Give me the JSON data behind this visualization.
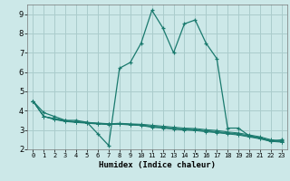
{
  "title": "",
  "xlabel": "Humidex (Indice chaleur)",
  "ylabel": "",
  "bg_color": "#cce8e8",
  "grid_color": "#aacccc",
  "line_color": "#1a7a6e",
  "xlim": [
    -0.5,
    23.5
  ],
  "ylim": [
    2,
    9.5
  ],
  "yticks": [
    2,
    3,
    4,
    5,
    6,
    7,
    8,
    9
  ],
  "xticks": [
    0,
    1,
    2,
    3,
    4,
    5,
    6,
    7,
    8,
    9,
    10,
    11,
    12,
    13,
    14,
    15,
    16,
    17,
    18,
    19,
    20,
    21,
    22,
    23
  ],
  "lines": [
    {
      "x": [
        0,
        1,
        2,
        3,
        4,
        5,
        6,
        7,
        8,
        9,
        10,
        11,
        12,
        13,
        14,
        15,
        16,
        17,
        18,
        19,
        20,
        21,
        22,
        23
      ],
      "y": [
        4.5,
        3.9,
        3.7,
        3.5,
        3.5,
        3.4,
        2.8,
        2.2,
        6.2,
        6.5,
        7.5,
        9.2,
        8.3,
        7.0,
        8.5,
        8.7,
        7.5,
        6.7,
        3.1,
        3.1,
        2.7,
        2.6,
        2.4,
        2.5
      ]
    },
    {
      "x": [
        0,
        1,
        2,
        3,
        4,
        5,
        6,
        7,
        8,
        9,
        10,
        11,
        12,
        13,
        14,
        15,
        16,
        17,
        18,
        19,
        20,
        21,
        22,
        23
      ],
      "y": [
        4.5,
        3.7,
        3.6,
        3.5,
        3.4,
        3.38,
        3.35,
        3.32,
        3.35,
        3.32,
        3.3,
        3.25,
        3.2,
        3.15,
        3.1,
        3.08,
        3.02,
        2.98,
        2.9,
        2.85,
        2.75,
        2.65,
        2.5,
        2.45
      ]
    },
    {
      "x": [
        0,
        1,
        2,
        3,
        4,
        5,
        6,
        7,
        8,
        9,
        10,
        11,
        12,
        13,
        14,
        15,
        16,
        17,
        18,
        19,
        20,
        21,
        22,
        23
      ],
      "y": [
        4.5,
        3.7,
        3.58,
        3.48,
        3.43,
        3.4,
        3.36,
        3.33,
        3.34,
        3.3,
        3.27,
        3.2,
        3.16,
        3.1,
        3.06,
        3.03,
        2.97,
        2.92,
        2.86,
        2.8,
        2.7,
        2.6,
        2.46,
        2.41
      ]
    },
    {
      "x": [
        0,
        1,
        2,
        3,
        4,
        5,
        6,
        7,
        8,
        9,
        10,
        11,
        12,
        13,
        14,
        15,
        16,
        17,
        18,
        19,
        20,
        21,
        22,
        23
      ],
      "y": [
        4.5,
        3.7,
        3.56,
        3.46,
        3.41,
        3.37,
        3.33,
        3.3,
        3.32,
        3.28,
        3.25,
        3.17,
        3.13,
        3.07,
        3.03,
        3.0,
        2.94,
        2.89,
        2.83,
        2.77,
        2.67,
        2.57,
        2.44,
        2.39
      ]
    },
    {
      "x": [
        0,
        1,
        2,
        3,
        4,
        5,
        6,
        7,
        8,
        9,
        10,
        11,
        12,
        13,
        14,
        15,
        16,
        17,
        18,
        19,
        20,
        21,
        22,
        23
      ],
      "y": [
        4.5,
        3.7,
        3.54,
        3.44,
        3.39,
        3.35,
        3.31,
        3.28,
        3.3,
        3.26,
        3.23,
        3.14,
        3.1,
        3.04,
        3.0,
        2.97,
        2.91,
        2.86,
        2.8,
        2.74,
        2.64,
        2.54,
        2.41,
        2.37
      ]
    }
  ]
}
